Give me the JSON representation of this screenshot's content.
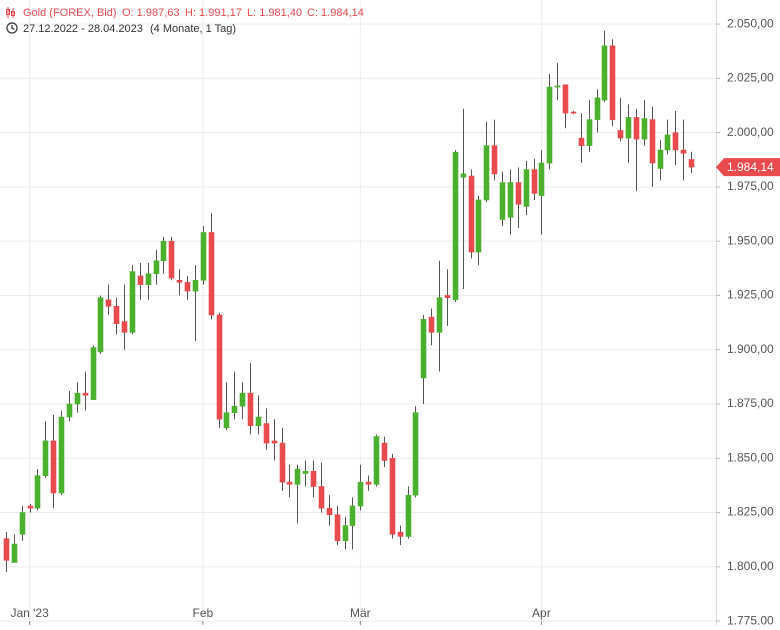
{
  "chart_data": {
    "type": "candlestick",
    "title": "Gold (FOREX, Bid)",
    "header_labels": [
      "O: 1.987,63",
      "H: 1.991,17",
      "L: 1.981,40",
      "C: 1.984,14"
    ],
    "date_range": "27.12.2022 - 28.04.2023",
    "period": "(4 Monate, 1 Tag)",
    "categories": [
      null,
      null,
      null,
      "Jan '23",
      null,
      null,
      null,
      null,
      null,
      null,
      null,
      null,
      null,
      null,
      null,
      null,
      null,
      null,
      null,
      null,
      null,
      null,
      null,
      null,
      null,
      "Feb",
      null,
      null,
      null,
      null,
      null,
      null,
      null,
      null,
      null,
      null,
      null,
      null,
      null,
      null,
      null,
      null,
      null,
      null,
      null,
      "Mär",
      null,
      null,
      null,
      null,
      null,
      null,
      null,
      null,
      null,
      null,
      null,
      null,
      null,
      null,
      null,
      null,
      null,
      null,
      null,
      null,
      null,
      null,
      "Apr",
      null,
      null,
      null,
      null,
      null,
      null,
      null,
      null,
      null,
      null,
      null,
      null,
      null,
      null,
      null,
      null,
      null,
      null,
      null
    ],
    "open": [
      1813,
      1802,
      1815,
      1828,
      1827,
      1842,
      1858,
      1834,
      1869,
      1875,
      1880,
      1877,
      1899,
      1923,
      1920,
      1913,
      1908,
      1934,
      1930,
      1935,
      1941,
      1950,
      1932,
      1931,
      1927,
      1932,
      1954,
      1916,
      1864,
      1871,
      1874,
      1880,
      1865,
      1866,
      1858,
      1857,
      1839,
      1838,
      1843,
      1844,
      1837,
      1827,
      1824,
      1812,
      1819,
      1828,
      1839,
      1838,
      1857,
      1850,
      1816,
      1814,
      1833,
      1887,
      1915,
      1908,
      1925,
      1923,
      1979.5,
      1980,
      1945,
      1969,
      1994,
      1960,
      1961,
      1977,
      1966,
      1983,
      1971,
      1986,
      2021,
      2022,
      2009.5,
      1997.5,
      1994,
      2006,
      2015,
      2040,
      2001,
      1997.5,
      2007,
      1997,
      2006,
      1983.5,
      1992,
      2000,
      1992,
      1987.63
    ],
    "high": [
      1816,
      1815,
      1828,
      1829,
      1845,
      1867,
      1870,
      1872,
      1881,
      1885,
      1890,
      1902,
      1925,
      1930,
      1924,
      1930,
      1939,
      1940,
      1940,
      1946,
      1952,
      1952,
      1937,
      1934,
      1939,
      1957,
      1963,
      1917,
      1885,
      1890,
      1885,
      1894,
      1879,
      1873,
      1868,
      1864,
      1847,
      1847,
      1849,
      1849,
      1848,
      1833,
      1828,
      1823,
      1832,
      1847,
      1842,
      1861,
      1860,
      1852,
      1819,
      1837,
      1874,
      1916,
      1919,
      1941,
      1937,
      1992,
      2011,
      1983,
      1971,
      2005,
      2006,
      1982,
      1983,
      1984,
      1987,
      1988,
      1992,
      2027,
      2032,
      2022,
      2010,
      2009,
      2015,
      2020,
      2047,
      2043,
      2016,
      2013,
      2011,
      2015,
      2012,
      1996.5,
      2006,
      2010,
      2006,
      1991.17
    ],
    "low": [
      1797.6,
      1802,
      1812,
      1825,
      1826,
      1841,
      1827,
      1833,
      1867,
      1871,
      1872,
      1877,
      1898,
      1916,
      1907,
      1900,
      1907,
      1923,
      1923,
      1930,
      1935,
      1932,
      1925,
      1923,
      1904,
      1930,
      1914,
      1864,
      1863,
      1868,
      1868,
      1861,
      1861,
      1854,
      1849,
      1835,
      1832,
      1820,
      1837,
      1832,
      1825,
      1819,
      1810,
      1808,
      1808,
      1826,
      1835,
      1837,
      1846,
      1813,
      1810,
      1813,
      1832,
      1875,
      1902,
      1890,
      1911,
      1922,
      1928,
      1942,
      1939,
      1968,
      1978,
      1957,
      1953,
      1956,
      1962,
      1969,
      1953,
      1983,
      2015,
      2002,
      2008.5,
      1986,
      1991,
      2000,
      2014,
      2003,
      1996,
      1986,
      1973,
      1994,
      1975,
      1978,
      1990,
      1985,
      1978,
      1981.4
    ],
    "close": [
      1803,
      1810.5,
      1825,
      1827,
      1842,
      1858,
      1834,
      1869,
      1875,
      1880,
      1879,
      1901,
      1924,
      1920,
      1912,
      1908,
      1936,
      1930,
      1935,
      1941,
      1950,
      1933,
      1931,
      1927,
      1932,
      1954,
      1916,
      1868,
      1871,
      1874,
      1880,
      1865,
      1869,
      1857,
      1857,
      1839,
      1838,
      1845,
      1844,
      1837,
      1827,
      1824,
      1812,
      1819,
      1828,
      1839,
      1838,
      1860,
      1849,
      1815,
      1814,
      1833,
      1871,
      1914,
      1908,
      1924,
      1924,
      1991,
      1981,
      1945,
      1969,
      1994,
      1981,
      1977,
      1977,
      1967,
      1983,
      1972,
      1986,
      2021,
      2021.5,
      2009,
      2009,
      1994,
      2006,
      2016,
      2040,
      2006,
      1997.5,
      2007,
      1997,
      2006.5,
      1986,
      1992,
      1999,
      1992,
      1990.5,
      1984.14
    ],
    "up_color": "#4bb02d",
    "down_color": "#e84a4e",
    "ylim": [
      1773.2,
      2061.1
    ],
    "yticks": [
      {
        "value": 1775,
        "label": "1.775,00"
      },
      {
        "value": 1800,
        "label": "1.800,00"
      },
      {
        "value": 1825,
        "label": "1.825,00"
      },
      {
        "value": 1850,
        "label": "1.850,00"
      },
      {
        "value": 1875,
        "label": "1.875,00"
      },
      {
        "value": 1900,
        "label": "1.900,00"
      },
      {
        "value": 1925,
        "label": "1.925,00"
      },
      {
        "value": 1950,
        "label": "1.950,00"
      },
      {
        "value": 1975,
        "label": "1.975,00"
      },
      {
        "value": 2000,
        "label": "2.000,00"
      },
      {
        "value": 2025,
        "label": "2.025,00"
      },
      {
        "value": 2050,
        "label": "2.050,00"
      }
    ],
    "last_price": {
      "value": 1984.14,
      "label": "1.984,14"
    },
    "grid": true
  }
}
